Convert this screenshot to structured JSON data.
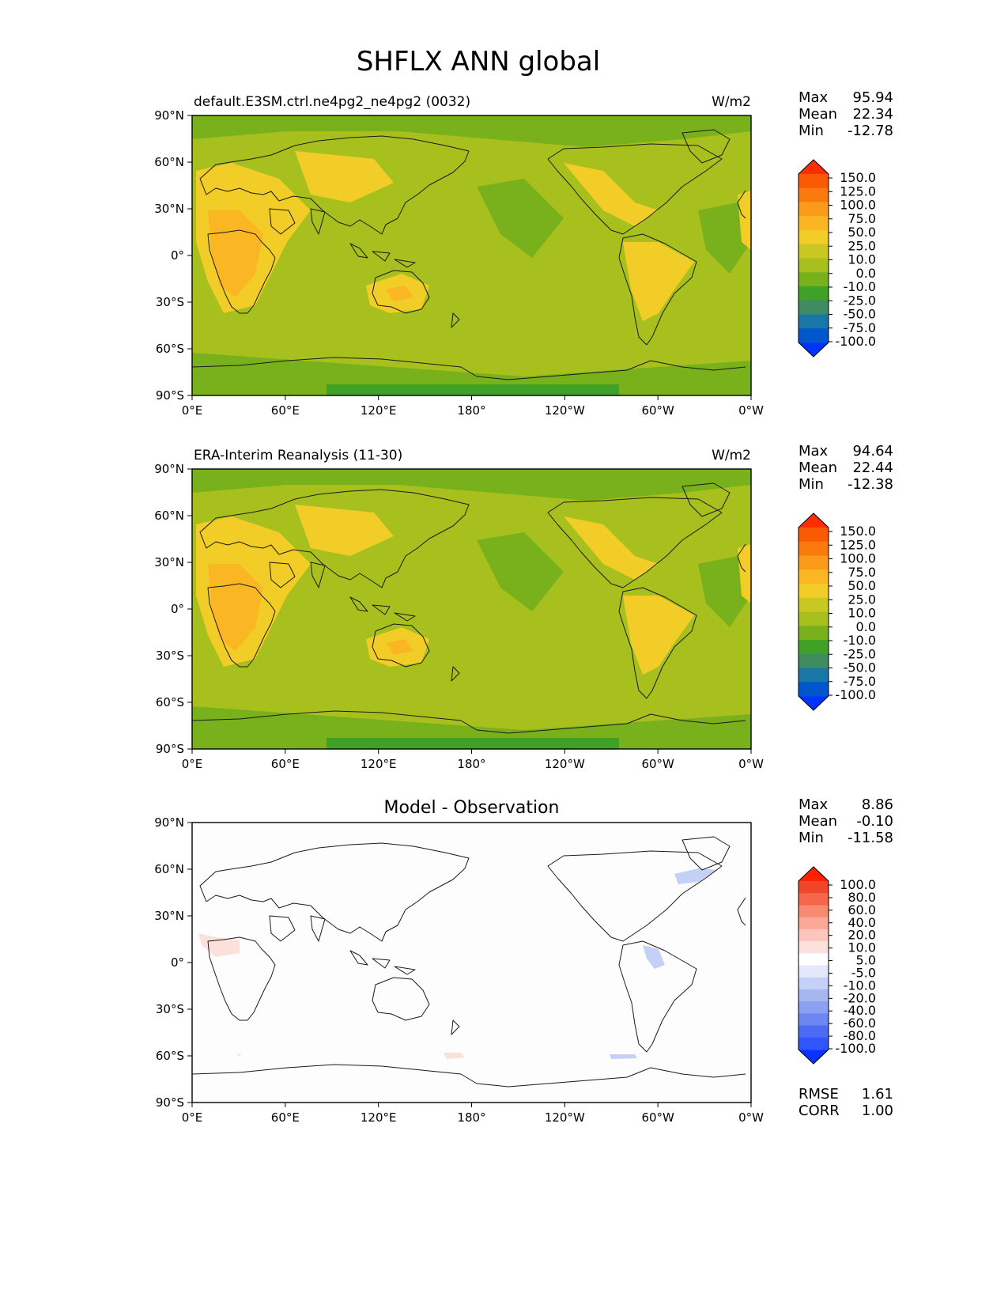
{
  "figure_title": "SHFLX ANN global",
  "colors": {
    "field_levels": [
      "#0033ff",
      "#0057cc",
      "#1877a7",
      "#3f8c62",
      "#3fa128",
      "#78b11b",
      "#a8c01e",
      "#c9c722",
      "#f2cd27",
      "#fbb624",
      "#fb9b1a",
      "#fb7a0e",
      "#fb5a05",
      "#ff2e00"
    ],
    "diff_levels": [
      "#0a33ff",
      "#2f55ff",
      "#4a6bf2",
      "#6d87f2",
      "#8aa0f0",
      "#a5b6f0",
      "#c5d0f7",
      "#e3e9fb",
      "#ffffff",
      "#fce0dc",
      "#fcc6bd",
      "#fba898",
      "#f98a72",
      "#f5664b",
      "#f0462c",
      "#ff2200"
    ]
  },
  "ticks": {
    "lat": [
      "90°N",
      "60°N",
      "30°N",
      "0°",
      "30°S",
      "60°S",
      "90°S"
    ],
    "lon": [
      "0°E",
      "60°E",
      "120°E",
      "180°",
      "120°W",
      "60°W",
      "0°W"
    ]
  },
  "panels": [
    {
      "left_title": "default.E3SM.ctrl.ne4pg2_ne4pg2 (0032)",
      "center_title": "",
      "right_title": "W/m2",
      "stats": [
        {
          "label": "Max",
          "value": "95.94"
        },
        {
          "label": "Mean",
          "value": "22.34"
        },
        {
          "label": "Min",
          "value": "-12.78"
        }
      ],
      "colorbar_labels": [
        "150.0",
        "125.0",
        "100.0",
        "75.0",
        "50.0",
        "25.0",
        "10.0",
        "0.0",
        "-10.0",
        "-25.0",
        "-50.0",
        "-75.0",
        "-100.0"
      ],
      "footer_stats": []
    },
    {
      "left_title": "ERA-Interim Reanalysis (11-30)",
      "center_title": "",
      "right_title": "W/m2",
      "stats": [
        {
          "label": "Max",
          "value": "94.64"
        },
        {
          "label": "Mean",
          "value": "22.44"
        },
        {
          "label": "Min",
          "value": "-12.38"
        }
      ],
      "colorbar_labels": [
        "150.0",
        "125.0",
        "100.0",
        "75.0",
        "50.0",
        "25.0",
        "10.0",
        "0.0",
        "-10.0",
        "-25.0",
        "-50.0",
        "-75.0",
        "-100.0"
      ],
      "footer_stats": []
    },
    {
      "left_title": "",
      "center_title": "Model - Observation",
      "right_title": "",
      "stats": [
        {
          "label": "Max",
          "value": "8.86"
        },
        {
          "label": "Mean",
          "value": "-0.10"
        },
        {
          "label": "Min",
          "value": "-11.58"
        }
      ],
      "colorbar_labels": [
        "100.0",
        "80.0",
        "60.0",
        "40.0",
        "20.0",
        "10.0",
        "5.0",
        "-5.0",
        "-10.0",
        "-20.0",
        "-40.0",
        "-60.0",
        "-80.0",
        "-100.0"
      ],
      "footer_stats": [
        {
          "label": "RMSE",
          "value": "1.61"
        },
        {
          "label": "CORR",
          "value": "1.00"
        }
      ]
    }
  ]
}
